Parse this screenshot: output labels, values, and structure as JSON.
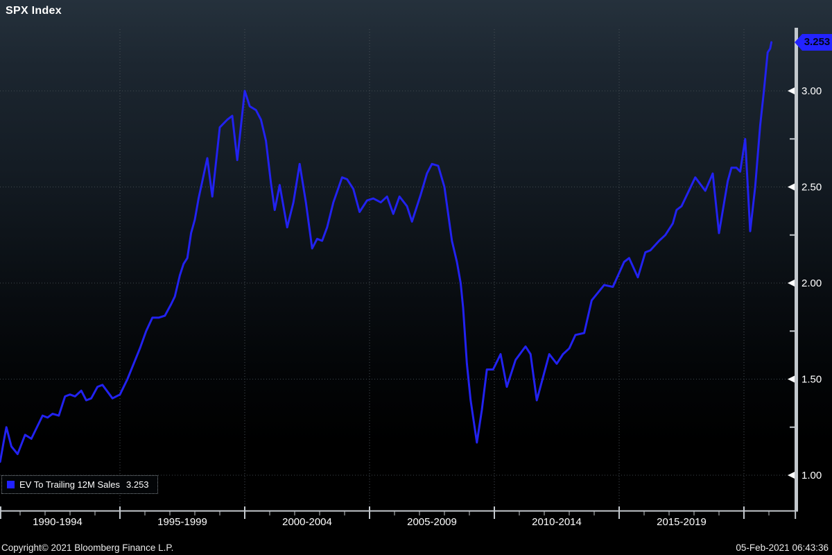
{
  "window": {
    "title": "SPX Index"
  },
  "badge": {
    "value": "3.253"
  },
  "legend": {
    "label": "EV To Trailing 12M Sales",
    "value": "3.253"
  },
  "footer": {
    "copyright": "Copyright© 2021 Bloomberg Finance L.P.",
    "timestamp": "05-Feb-2021 06:43:36"
  },
  "colors": {
    "line": "#2222f0",
    "badge_bg": "#2323ff",
    "legend_swatch": "#2121ff",
    "axis": "#c3c8cd",
    "grid_h": "#41484e",
    "grid_v": "#4a5157",
    "text": "#ffffff",
    "bg_top": "#25313c",
    "bg_bottom": "#000000"
  },
  "chart_data": {
    "type": "line",
    "title": "SPX Index",
    "grid": "dotted",
    "legend_position": "bottom-left",
    "x_axis": {
      "tick_labels": [
        "1990-1994",
        "1995-1999",
        "2000-2004",
        "2005-2009",
        "2010-2014",
        "2015-2019"
      ],
      "label_center_years": [
        1992.5,
        1997.5,
        2002.5,
        2007.5,
        2012.5,
        2017.5
      ],
      "grid_years": [
        1995,
        2000,
        2005,
        2010,
        2015,
        2020
      ],
      "minor_tick_every_years": 1,
      "range_years": [
        1990.2,
        2022.06
      ]
    },
    "y_axis": {
      "side": "right",
      "range": [
        0.97,
        3.35
      ],
      "major_ticks": [
        {
          "v": 3.0,
          "label": "3.00"
        },
        {
          "v": 2.5,
          "label": "2.50"
        },
        {
          "v": 2.0,
          "label": "2.00"
        },
        {
          "v": 1.5,
          "label": "1.50"
        },
        {
          "v": 1.0,
          "label": "1.00"
        }
      ],
      "minor_ticks": [
        2.75,
        2.25,
        1.75,
        1.25
      ]
    },
    "series": [
      {
        "name": "EV To Trailing 12M Sales",
        "last_value": 3.253,
        "points": [
          [
            1990.2,
            1.07
          ],
          [
            1990.35,
            1.18
          ],
          [
            1990.45,
            1.25
          ],
          [
            1990.65,
            1.15
          ],
          [
            1990.9,
            1.11
          ],
          [
            1991.2,
            1.21
          ],
          [
            1991.45,
            1.19
          ],
          [
            1991.9,
            1.31
          ],
          [
            1992.1,
            1.3
          ],
          [
            1992.3,
            1.32
          ],
          [
            1992.55,
            1.31
          ],
          [
            1992.8,
            1.41
          ],
          [
            1993.0,
            1.42
          ],
          [
            1993.2,
            1.41
          ],
          [
            1993.45,
            1.44
          ],
          [
            1993.65,
            1.39
          ],
          [
            1993.85,
            1.4
          ],
          [
            1994.1,
            1.46
          ],
          [
            1994.3,
            1.47
          ],
          [
            1994.7,
            1.4
          ],
          [
            1995.0,
            1.42
          ],
          [
            1995.3,
            1.5
          ],
          [
            1995.55,
            1.58
          ],
          [
            1995.8,
            1.66
          ],
          [
            1996.05,
            1.75
          ],
          [
            1996.3,
            1.82
          ],
          [
            1996.55,
            1.82
          ],
          [
            1996.8,
            1.83
          ],
          [
            1997.05,
            1.89
          ],
          [
            1997.2,
            1.93
          ],
          [
            1997.4,
            2.04
          ],
          [
            1997.55,
            2.1
          ],
          [
            1997.7,
            2.13
          ],
          [
            1997.85,
            2.26
          ],
          [
            1998.0,
            2.33
          ],
          [
            1998.15,
            2.44
          ],
          [
            1998.5,
            2.65
          ],
          [
            1998.7,
            2.45
          ],
          [
            1999.0,
            2.81
          ],
          [
            1999.3,
            2.85
          ],
          [
            1999.5,
            2.87
          ],
          [
            1999.7,
            2.64
          ],
          [
            2000.0,
            3.0
          ],
          [
            2000.2,
            2.92
          ],
          [
            2000.45,
            2.9
          ],
          [
            2000.65,
            2.85
          ],
          [
            2000.85,
            2.74
          ],
          [
            2001.05,
            2.52
          ],
          [
            2001.2,
            2.38
          ],
          [
            2001.4,
            2.51
          ],
          [
            2001.7,
            2.29
          ],
          [
            2001.95,
            2.42
          ],
          [
            2002.2,
            2.62
          ],
          [
            2002.45,
            2.42
          ],
          [
            2002.7,
            2.18
          ],
          [
            2002.9,
            2.23
          ],
          [
            2003.1,
            2.22
          ],
          [
            2003.3,
            2.29
          ],
          [
            2003.55,
            2.42
          ],
          [
            2003.9,
            2.55
          ],
          [
            2004.1,
            2.54
          ],
          [
            2004.35,
            2.49
          ],
          [
            2004.6,
            2.37
          ],
          [
            2004.9,
            2.43
          ],
          [
            2005.15,
            2.44
          ],
          [
            2005.45,
            2.42
          ],
          [
            2005.7,
            2.45
          ],
          [
            2005.95,
            2.36
          ],
          [
            2006.2,
            2.45
          ],
          [
            2006.5,
            2.4
          ],
          [
            2006.7,
            2.32
          ],
          [
            2007.05,
            2.46
          ],
          [
            2007.3,
            2.57
          ],
          [
            2007.5,
            2.62
          ],
          [
            2007.75,
            2.61
          ],
          [
            2008.0,
            2.5
          ],
          [
            2008.3,
            2.22
          ],
          [
            2008.5,
            2.11
          ],
          [
            2008.65,
            2.0
          ],
          [
            2008.75,
            1.87
          ],
          [
            2008.9,
            1.58
          ],
          [
            2009.05,
            1.39
          ],
          [
            2009.3,
            1.17
          ],
          [
            2009.5,
            1.34
          ],
          [
            2009.7,
            1.55
          ],
          [
            2009.95,
            1.55
          ],
          [
            2010.25,
            1.63
          ],
          [
            2010.5,
            1.46
          ],
          [
            2010.85,
            1.6
          ],
          [
            2011.25,
            1.67
          ],
          [
            2011.45,
            1.63
          ],
          [
            2011.7,
            1.39
          ],
          [
            2012.2,
            1.63
          ],
          [
            2012.5,
            1.58
          ],
          [
            2012.75,
            1.63
          ],
          [
            2013.0,
            1.66
          ],
          [
            2013.25,
            1.73
          ],
          [
            2013.6,
            1.74
          ],
          [
            2013.9,
            1.91
          ],
          [
            2014.4,
            1.99
          ],
          [
            2014.75,
            1.98
          ],
          [
            2015.2,
            2.11
          ],
          [
            2015.4,
            2.13
          ],
          [
            2015.75,
            2.03
          ],
          [
            2016.05,
            2.16
          ],
          [
            2016.25,
            2.17
          ],
          [
            2016.6,
            2.22
          ],
          [
            2016.85,
            2.25
          ],
          [
            2017.15,
            2.31
          ],
          [
            2017.3,
            2.38
          ],
          [
            2017.5,
            2.4
          ],
          [
            2018.05,
            2.55
          ],
          [
            2018.45,
            2.48
          ],
          [
            2018.75,
            2.57
          ],
          [
            2019.0,
            2.26
          ],
          [
            2019.35,
            2.53
          ],
          [
            2019.5,
            2.6
          ],
          [
            2019.7,
            2.6
          ],
          [
            2019.85,
            2.58
          ],
          [
            2020.05,
            2.75
          ],
          [
            2020.25,
            2.27
          ],
          [
            2020.45,
            2.5
          ],
          [
            2020.65,
            2.82
          ],
          [
            2020.8,
            3.0
          ],
          [
            2020.95,
            3.2
          ],
          [
            2021.05,
            3.22
          ],
          [
            2021.1,
            3.253
          ]
        ]
      }
    ]
  }
}
